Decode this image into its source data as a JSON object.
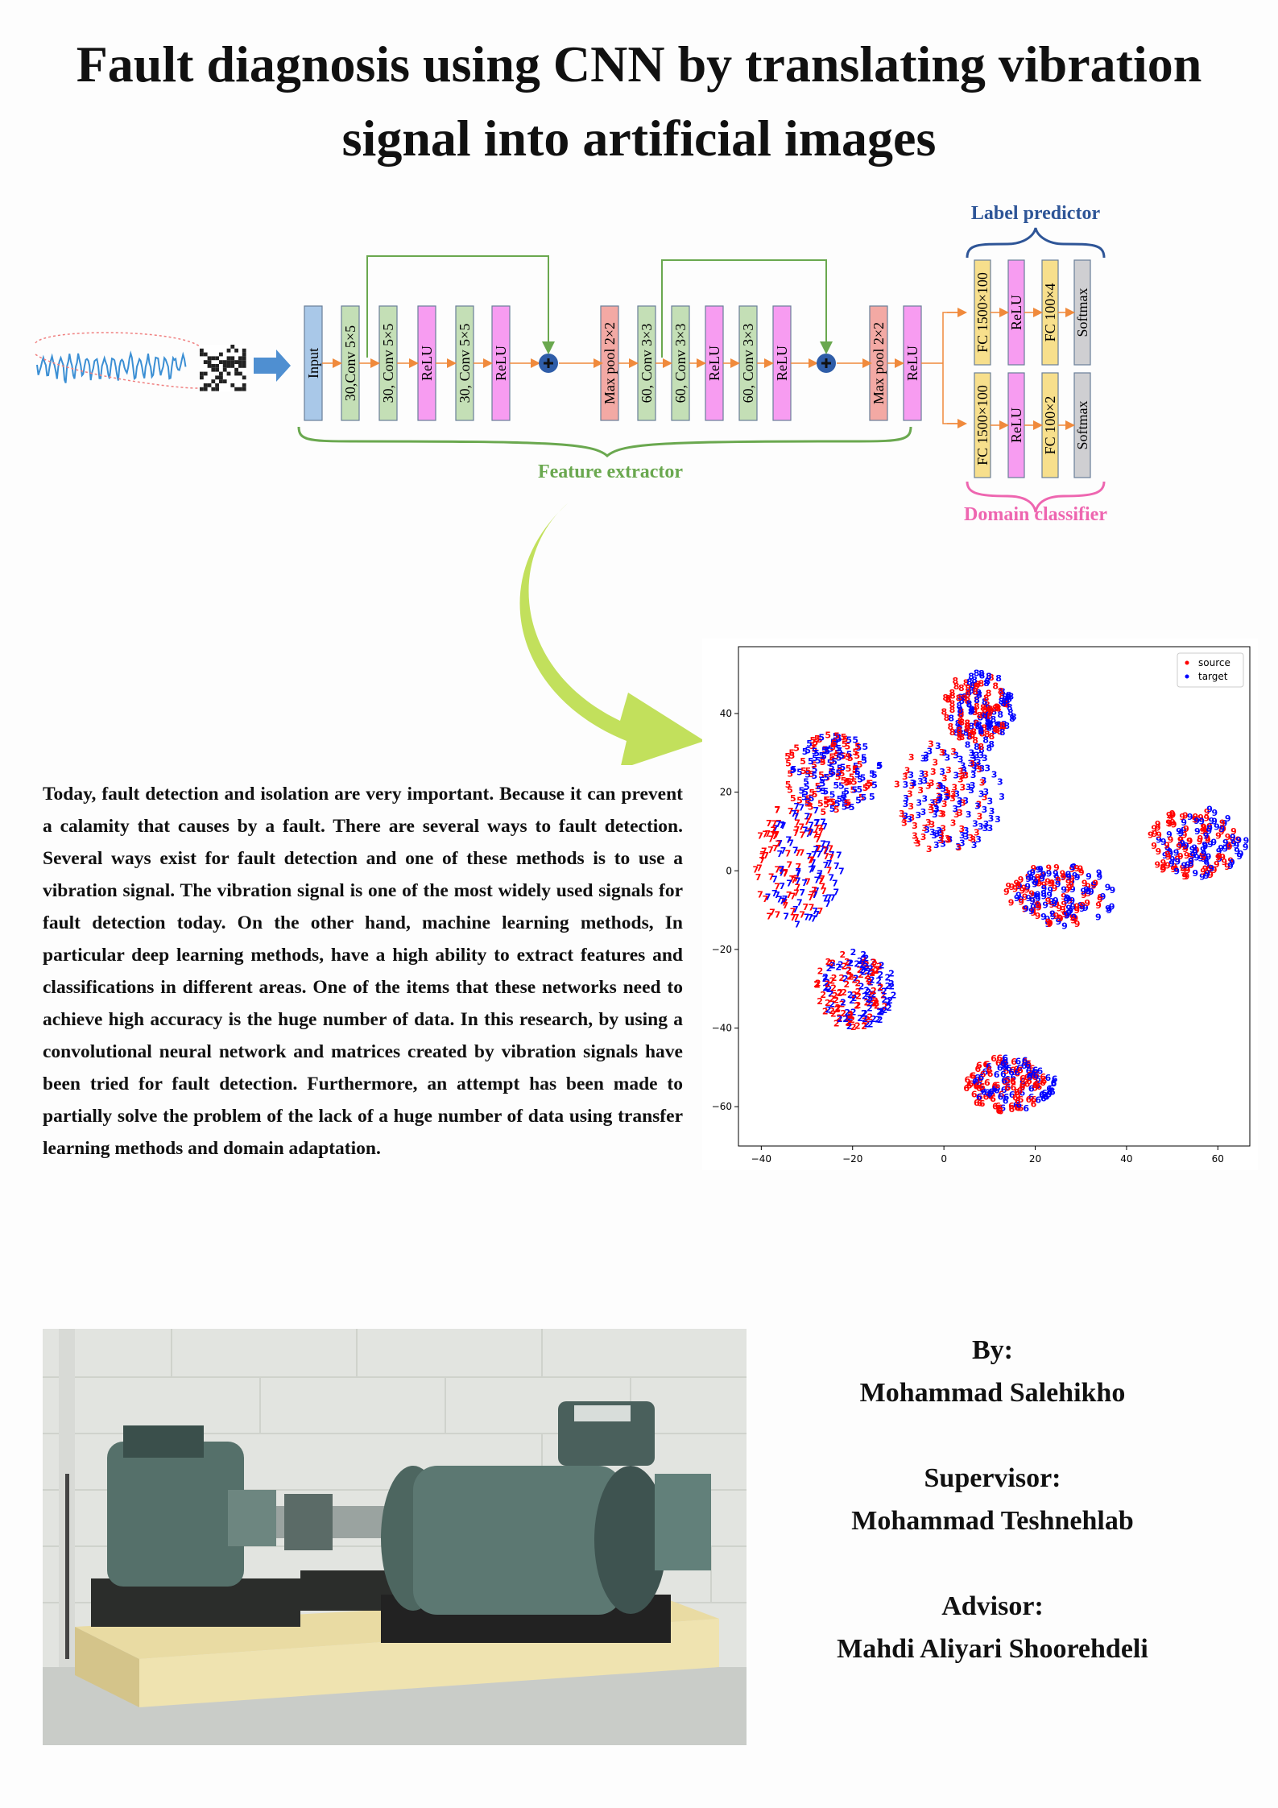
{
  "title": "Fault diagnosis using CNN by translating vibration signal into artificial images",
  "diagram": {
    "feature_layers": [
      "Input",
      "30,Conv 5×5",
      "30, Conv 5×5",
      "ReLU",
      "30, Conv 5×5",
      "ReLU",
      "Max pool 2×2",
      "60, Conv 3×3",
      "60, Conv 3×3",
      "ReLU",
      "60, Conv 3×3",
      "ReLU",
      "Max pool 2×2",
      "ReLU"
    ],
    "label_predictor_layers": [
      "FC 1500×100",
      "ReLU",
      "FC 100×4",
      "Softmax"
    ],
    "domain_classifier_layers": [
      "FC 1500×100",
      "ReLU",
      "FC 100×2",
      "Softmax"
    ],
    "label_predictor_title": "Label predictor",
    "domain_classifier_title": "Domain classifier",
    "feature_extractor_title": "Feature extractor",
    "colors": {
      "input": "#a9c8e8",
      "conv": "#c4dfb6",
      "relu": "#f79cf1",
      "pool": "#f3a9a4",
      "fc": "#f7df8c",
      "softmax": "#cfcfd2",
      "green": "#6aa84f",
      "blue_text": "#2e5597",
      "pink_text": "#ee66b0",
      "arrow": "#f08a3c",
      "add_node": "#2f5da8",
      "curved_arrow": "#c2e05c"
    }
  },
  "abstract": "Today, fault detection and isolation are very important. Because it can prevent a calamity that causes by a fault. There are several ways to fault detection. Several ways exist for fault detection and one of these methods is to use a vibration signal. The vibration signal is one of the most widely used signals for fault detection today. On the other hand, machine learning methods, In particular deep learning methods, have a high ability to extract features and classifications in different areas. One of the items that these networks need to achieve high accuracy is the huge number of data. In this research, by using a convolutional neural network and matrices created by vibration signals have been tried for fault detection. Furthermore, an attempt has been made to partially solve the problem of the lack of a huge number of data using transfer learning methods and domain adaptation.",
  "credits": {
    "by_label": "By:",
    "author": "Mohammad Salehikho",
    "supervisor_label": "Supervisor:",
    "supervisor": "Mohammad Teshnehlab",
    "advisor_label": "Advisor:",
    "advisor": "Mahdi Aliyari Shoorehdeli"
  },
  "chart_data": {
    "type": "scatter",
    "title": "",
    "xlabel": "",
    "ylabel": "",
    "xlim": [
      -45,
      67
    ],
    "ylim": [
      -70,
      57
    ],
    "xticks": [
      -40,
      -20,
      0,
      20,
      40,
      60
    ],
    "yticks": [
      40,
      20,
      0,
      -20,
      -40,
      -60
    ],
    "legend_position": "top-right",
    "series": [
      {
        "name": "source",
        "color": "#ff0000"
      },
      {
        "name": "target",
        "color": "#0000ff"
      }
    ],
    "clusters": [
      {
        "cx": -33,
        "cy": 0,
        "rx": 9,
        "ry": 16,
        "label": "7",
        "source": 0.6
      },
      {
        "cx": -25,
        "cy": 24,
        "rx": 10,
        "ry": 10,
        "label": "5",
        "source": 0.45
      },
      {
        "cx": 0,
        "cy": 18,
        "rx": 11,
        "ry": 14,
        "label": "3",
        "source": 0.5
      },
      {
        "cx": 7,
        "cy": 40,
        "rx": 7,
        "ry": 10,
        "label": "8",
        "source": 0.5
      },
      {
        "cx": -20,
        "cy": -31,
        "rx": 8,
        "ry": 10,
        "label": "2",
        "source": 0.55
      },
      {
        "cx": 25,
        "cy": -7,
        "rx": 11,
        "ry": 8,
        "label": "9",
        "source": 0.5
      },
      {
        "cx": 55,
        "cy": 6,
        "rx": 10,
        "ry": 9,
        "label": "9",
        "source": 0.5
      },
      {
        "cx": 14,
        "cy": -55,
        "rx": 9,
        "ry": 7,
        "label": "6",
        "source": 0.6
      }
    ]
  }
}
